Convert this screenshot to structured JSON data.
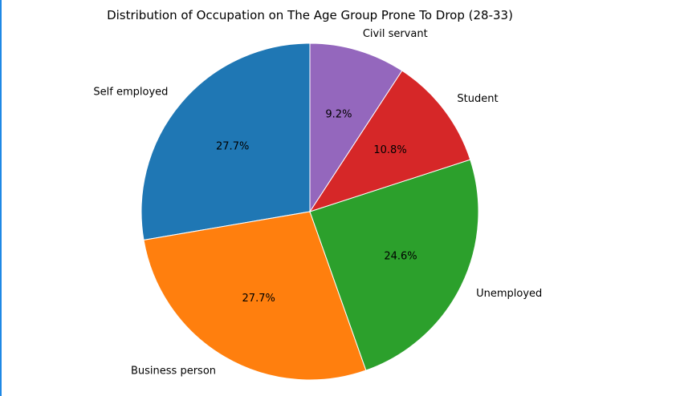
{
  "chart_data": {
    "type": "pie",
    "title": "Distribution of Occupation on The Age Group Prone To Drop (28-33)",
    "start_angle_deg": 90,
    "direction": "counterclockwise",
    "slices": [
      {
        "label": "Self employed",
        "pct_label": "27.7%",
        "value": 27.7,
        "color": "#1f77b4"
      },
      {
        "label": "Business person",
        "pct_label": "27.7%",
        "value": 27.7,
        "color": "#ff7f0e"
      },
      {
        "label": "Unemployed",
        "pct_label": "24.6%",
        "value": 24.6,
        "color": "#2ca02c"
      },
      {
        "label": "Student",
        "pct_label": "10.8%",
        "value": 10.8,
        "color": "#d62728"
      },
      {
        "label": "Civil servant",
        "pct_label": "9.2%",
        "value": 9.2,
        "color": "#9467bd"
      }
    ]
  },
  "theme": {
    "accent_bar_color": "#1e88e5"
  }
}
